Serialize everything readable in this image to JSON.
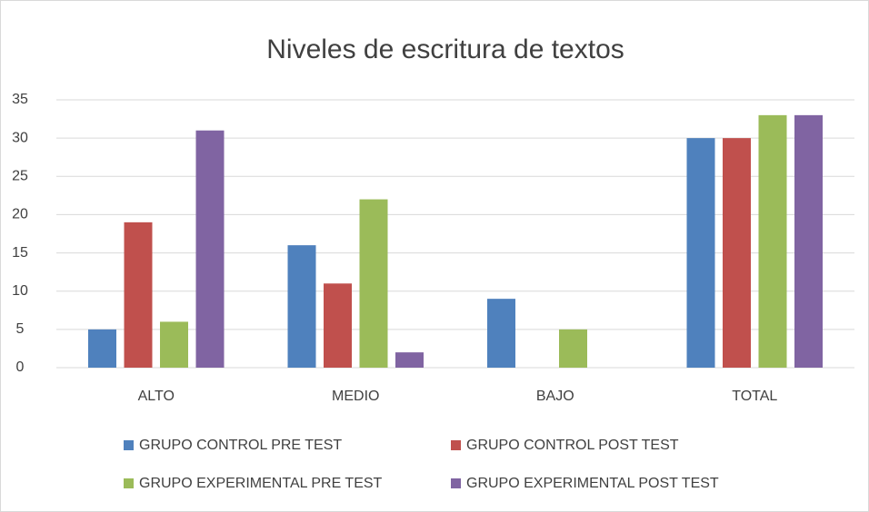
{
  "chart_data": {
    "type": "bar",
    "title": "Niveles de escritura de textos",
    "categories": [
      "ALTO",
      "MEDIO",
      "BAJO",
      "TOTAL"
    ],
    "series": [
      {
        "name": "GRUPO CONTROL PRE TEST",
        "color": "#4f81bd",
        "values": [
          5,
          16,
          9,
          30
        ]
      },
      {
        "name": "GRUPO CONTROL POST TEST",
        "color": "#c0504d",
        "values": [
          19,
          11,
          0,
          30
        ]
      },
      {
        "name": "GRUPO EXPERIMENTAL PRE TEST",
        "color": "#9bbb59",
        "values": [
          6,
          22,
          5,
          33
        ]
      },
      {
        "name": "GRUPO EXPERIMENTAL POST TEST",
        "color": "#8064a2",
        "values": [
          31,
          2,
          0,
          33
        ]
      }
    ],
    "ylim": [
      0,
      35
    ],
    "yticks": [
      0,
      5,
      10,
      15,
      20,
      25,
      30,
      35
    ],
    "grid": true,
    "legend": "bottom"
  }
}
